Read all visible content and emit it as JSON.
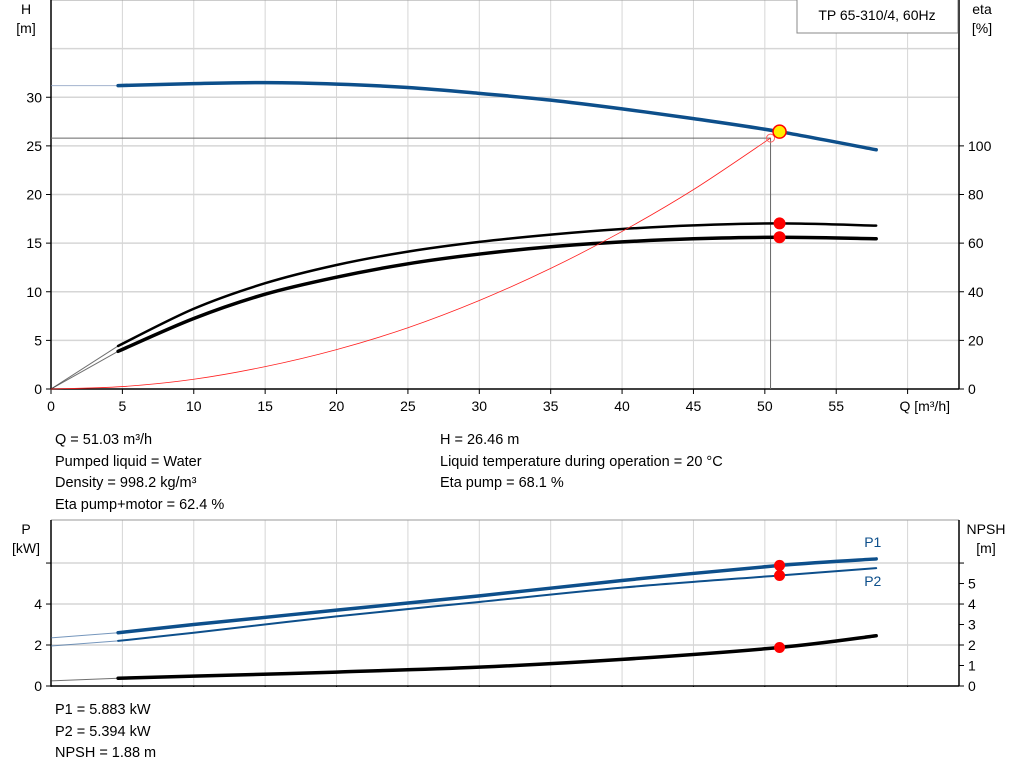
{
  "chart_data": [
    {
      "type": "line",
      "title": "TP 65-310/4, 60Hz",
      "xlabel": "Q [m³/h]",
      "ylabel_left": [
        "H",
        "[m]"
      ],
      "ylabel_right": [
        "eta",
        "[%]"
      ],
      "xlim": [
        0,
        63.6
      ],
      "ylim_left": [
        0,
        40
      ],
      "ylim_right": [
        0,
        160
      ],
      "x_ticks": [
        0,
        5,
        10,
        15,
        20,
        25,
        30,
        35,
        40,
        45,
        50,
        55
      ],
      "y_ticks_left": [
        0,
        5,
        10,
        15,
        20,
        25,
        30
      ],
      "y_ticks_right": [
        0,
        20,
        40,
        60,
        80,
        100
      ],
      "grid": true,
      "series": [
        {
          "id": "head",
          "axis": "left",
          "color": "#0d4f8b",
          "x": [
            4.7,
            10,
            15,
            20,
            25,
            30,
            35,
            40,
            45,
            51.03,
            57.8
          ],
          "y": [
            31.2,
            31.4,
            31.5,
            31.35,
            31.0,
            30.4,
            29.7,
            28.8,
            27.8,
            26.46,
            24.6
          ],
          "extrapolated_from": [
            0,
            31.2
          ]
        },
        {
          "id": "eta-pump",
          "axis": "right",
          "color": "#000000",
          "x": [
            4.7,
            10,
            15,
            20,
            25,
            30,
            35,
            40,
            45,
            51.03,
            57.8
          ],
          "y": [
            17.7,
            33,
            43.5,
            51,
            56.5,
            60.5,
            63.5,
            65.8,
            67.3,
            68.1,
            67.2
          ],
          "extrapolated_from": [
            0,
            0
          ]
        },
        {
          "id": "eta-pump-motor",
          "axis": "right",
          "color": "#000000",
          "x": [
            4.7,
            10,
            15,
            20,
            25,
            30,
            35,
            40,
            45,
            51.03,
            57.8
          ],
          "y": [
            15.5,
            29,
            39,
            46,
            51.5,
            55.5,
            58.5,
            60.5,
            61.8,
            62.4,
            61.8
          ],
          "extrapolated_from": [
            0,
            0
          ]
        },
        {
          "id": "system-curve",
          "axis": "left",
          "color": "#ff2020",
          "x": [
            0,
            5,
            10,
            15,
            20,
            25,
            30,
            35,
            40,
            45,
            50.4
          ],
          "y": [
            0,
            0.25,
            1.0,
            2.3,
            4.05,
            6.3,
            9.1,
            12.4,
            16.2,
            20.5,
            25.8
          ]
        }
      ],
      "duty_point": {
        "Q": 51.03,
        "H": 26.46,
        "eta_pump": 68.1,
        "eta_pump_motor": 62.4
      },
      "system_point": {
        "Q": 50.4,
        "H": 25.8
      },
      "marker_colors": {
        "duty": "#ffee00",
        "outline": "#ff0000",
        "eta": "#ff0000"
      }
    },
    {
      "type": "line",
      "xlim": [
        0,
        63.6
      ],
      "ylabel_left": [
        "P",
        "[kW]"
      ],
      "ylabel_right": [
        "NPSH",
        "[m]"
      ],
      "ylim_left": [
        0,
        8.1
      ],
      "ylim_right": [
        0,
        8.1
      ],
      "y_ticks_left": [
        0,
        2,
        4
      ],
      "y_ticks_right": [
        0,
        1,
        2,
        3,
        4,
        5
      ],
      "grid": true,
      "series": [
        {
          "id": "P1",
          "name": "P1",
          "axis": "left",
          "color": "#0d4f8b",
          "x": [
            4.7,
            10,
            20,
            30,
            40,
            51.03,
            57.8
          ],
          "y": [
            2.6,
            3.0,
            3.7,
            4.4,
            5.15,
            5.883,
            6.2
          ],
          "extrapolated_from": [
            0,
            2.35
          ]
        },
        {
          "id": "P2",
          "name": "P2",
          "axis": "left",
          "color": "#0d4f8b",
          "x": [
            4.7,
            10,
            20,
            30,
            40,
            51.03,
            57.8
          ],
          "y": [
            2.2,
            2.6,
            3.4,
            4.1,
            4.8,
            5.394,
            5.75
          ],
          "extrapolated_from": [
            0,
            1.95
          ]
        },
        {
          "id": "NPSH",
          "axis": "right",
          "color": "#000000",
          "x": [
            4.7,
            10,
            20,
            30,
            40,
            51.03,
            57.8
          ],
          "y": [
            0.38,
            0.48,
            0.68,
            0.92,
            1.3,
            1.88,
            2.45
          ],
          "extrapolated_from": [
            0,
            0.25
          ]
        }
      ],
      "duty_point": {
        "Q": 51.03,
        "P1": 5.883,
        "P2": 5.394,
        "NPSH": 1.88
      }
    }
  ],
  "info_top": {
    "q": "Q = 51.03 m³/h",
    "liquid": "Pumped liquid = Water",
    "density": "Density = 998.2 kg/m³",
    "eta_pm": "Eta pump+motor = 62.4 %",
    "h": "H = 26.46 m",
    "temp": "Liquid temperature during operation = 20 °C",
    "eta_p": "Eta pump = 68.1 %"
  },
  "info_bottom": {
    "p1": "P1 = 5.883 kW",
    "p2": "P2 = 5.394 kW",
    "npsh": "NPSH = 1.88 m"
  }
}
